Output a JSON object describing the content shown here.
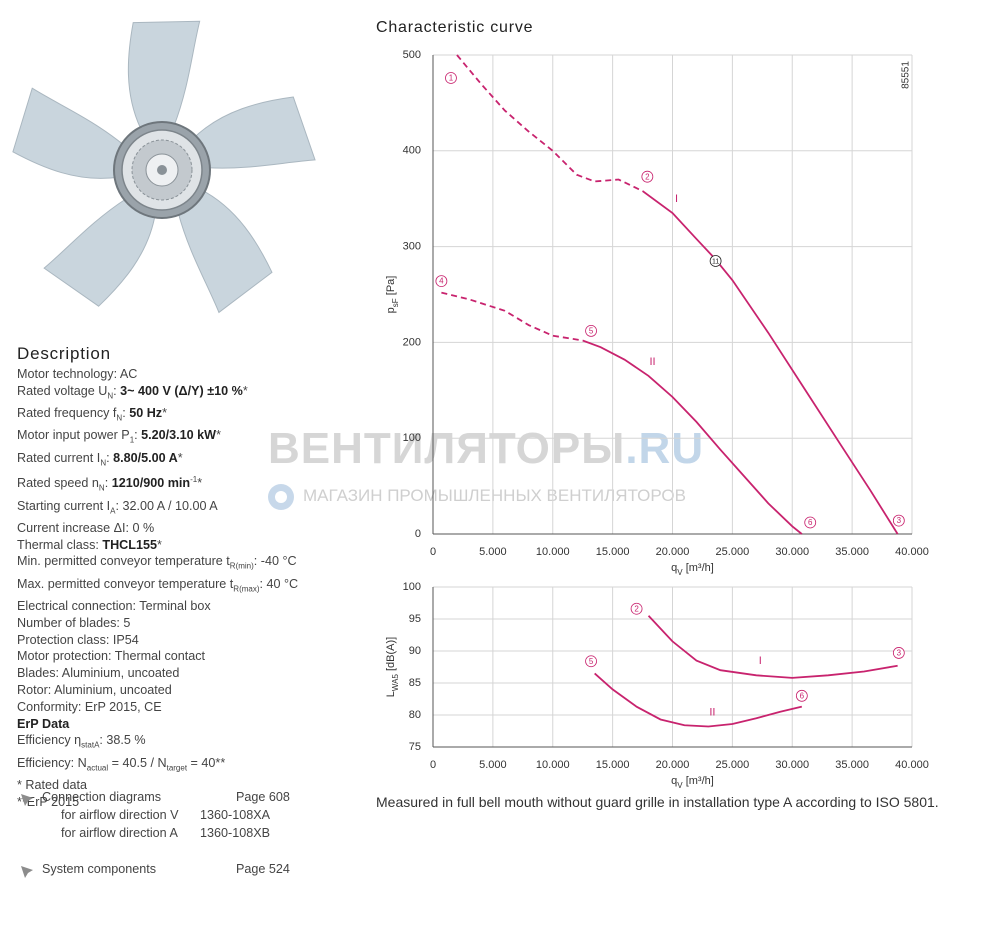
{
  "description": {
    "title": "Description",
    "lines": [
      [
        "Motor technology: AC"
      ],
      [
        "Rated voltage U",
        {
          "sub": "N"
        },
        ": ",
        {
          "b": "3~ 400 V (Δ/Y) ±10 %"
        },
        "*"
      ],
      [
        "Rated frequency f",
        {
          "sub": "N"
        },
        ": ",
        {
          "b": "50 Hz"
        },
        "*"
      ],
      [
        "Motor input power P",
        {
          "sub": "1"
        },
        ": ",
        {
          "b": "5.20/3.10 kW"
        },
        "*"
      ],
      [
        "Rated current I",
        {
          "sub": "N"
        },
        ": ",
        {
          "b": "8.80/5.00 A"
        },
        "*"
      ],
      [
        "Rated speed n",
        {
          "sub": "N"
        },
        ": ",
        {
          "b": "1210/900 min"
        },
        {
          "sup": "-1"
        },
        "*"
      ],
      [
        "Starting current I",
        {
          "sub": "A"
        },
        ": 32.00 A / 10.00 A"
      ],
      [
        "Current increase ΔI: 0 %"
      ],
      [
        "Thermal class: ",
        {
          "b": "THCL155"
        },
        "*"
      ],
      [
        "Min. permitted conveyor temperature t",
        {
          "sub": "R(min)"
        },
        ": -40 °C"
      ],
      [
        "Max. permitted conveyor temperature t",
        {
          "sub": "R(max)"
        },
        ": 40 °C"
      ],
      [
        "Electrical connection: Terminal box"
      ],
      [
        "Number of blades: 5"
      ],
      [
        "Protection class: IP54"
      ],
      [
        "Motor protection: Thermal contact"
      ],
      [
        "Blades: Aluminium, uncoated"
      ],
      [
        "Rotor: Aluminium, uncoated"
      ],
      [
        "Conformity: ErP 2015, CE"
      ],
      [
        {
          "b": "ErP Data"
        }
      ],
      [
        "Efficiency η",
        {
          "sub": "statA"
        },
        ": 38.5 %"
      ],
      [
        "Efficiency: N",
        {
          "sub": "actual"
        },
        " = 40.5 / N",
        {
          "sub": "target"
        },
        " = 40**"
      ],
      [
        "* Rated data"
      ],
      [
        "**ErP 2015"
      ]
    ]
  },
  "links": [
    {
      "label": "Connection diagrams",
      "page": "Page 608",
      "items": [
        {
          "text": "for airflow direction V",
          "code": "1360-108XA"
        },
        {
          "text": "for airflow direction A",
          "code": "1360-108XB"
        }
      ]
    },
    {
      "label": "System components",
      "page": "Page 524"
    }
  ],
  "watermark": {
    "brand": "ВЕНТИЛЯТОРЫ",
    "domain": ".RU",
    "tagline": "МАГАЗИН ПРОМЫШЛЕННЫХ ВЕНТИЛЯТОРОВ"
  },
  "caption": "Measured in full bell mouth without guard grille in installation type A according to ISO 5801.",
  "chart_data": [
    {
      "type": "line",
      "title": "Characteristic curve",
      "code": "85551",
      "xlabel": [
        "q",
        {
          "sub": "V"
        },
        " [m³/h]"
      ],
      "ylabel": [
        "p",
        {
          "sub": "sF"
        },
        " [Pa]"
      ],
      "xlim": [
        0,
        40000
      ],
      "xticks": [
        0,
        {
          "value": 5000,
          "label": "5.000"
        },
        {
          "value": 10000,
          "label": "10.000"
        },
        {
          "value": 15000,
          "label": "15.000"
        },
        {
          "value": 20000,
          "label": "20.000"
        },
        {
          "value": 25000,
          "label": "25.000"
        },
        {
          "value": 30000,
          "label": "30.000"
        },
        {
          "value": 35000,
          "label": "35.000"
        },
        {
          "value": 40000,
          "label": "40.000"
        }
      ],
      "ylim": [
        0,
        500
      ],
      "yticks": [
        0,
        100,
        200,
        300,
        400,
        500
      ],
      "grid": true,
      "series": [
        {
          "name": "I",
          "color": "#c8236e",
          "dashed_until_index": 8,
          "x": [
            2000,
            4000,
            6000,
            8000,
            10000,
            12000,
            13500,
            15500,
            17500,
            20000,
            22000,
            23500,
            25000,
            28000,
            31000,
            34000,
            36500,
            38800
          ],
          "values": [
            500,
            470,
            442,
            420,
            400,
            375,
            368,
            370,
            358,
            335,
            308,
            288,
            265,
            210,
            152,
            94,
            46,
            0
          ]
        },
        {
          "name": "II",
          "color": "#c8236e",
          "dashed_until_index": 5,
          "x": [
            700,
            3000,
            6000,
            8000,
            10000,
            12500,
            14000,
            16000,
            18000,
            20000,
            22000,
            24000,
            26000,
            28000,
            30000,
            30800
          ],
          "values": [
            252,
            245,
            233,
            218,
            207,
            202,
            195,
            182,
            165,
            143,
            117,
            88,
            60,
            32,
            8,
            0
          ]
        }
      ],
      "annotations": [
        {
          "text": "1",
          "x": 1500,
          "y": 476,
          "color": "#c8236e"
        },
        {
          "text": "2",
          "x": 17900,
          "y": 373,
          "color": "#c8236e"
        },
        {
          "text": "11",
          "x": 23600,
          "y": 285,
          "color": "#222222"
        },
        {
          "text": "3",
          "x": 38900,
          "y": 14,
          "color": "#c8236e"
        },
        {
          "text": "4",
          "x": 700,
          "y": 264,
          "color": "#c8236e"
        },
        {
          "text": "5",
          "x": 13200,
          "y": 212,
          "color": "#c8236e"
        },
        {
          "text": "6",
          "x": 31500,
          "y": 12,
          "color": "#c8236e"
        }
      ]
    },
    {
      "type": "line",
      "xlabel": [
        "q",
        {
          "sub": "V"
        },
        " [m³/h]"
      ],
      "ylabel": [
        "L",
        {
          "sub": "WA5"
        },
        " [dB(A)]"
      ],
      "xlim": [
        0,
        40000
      ],
      "xticks": [
        0,
        {
          "value": 5000,
          "label": "5.000"
        },
        {
          "value": 10000,
          "label": "10.000"
        },
        {
          "value": 15000,
          "label": "15.000"
        },
        {
          "value": 20000,
          "label": "20.000"
        },
        {
          "value": 25000,
          "label": "25.000"
        },
        {
          "value": 30000,
          "label": "30.000"
        },
        {
          "value": 35000,
          "label": "35.000"
        },
        {
          "value": 40000,
          "label": "40.000"
        }
      ],
      "ylim": [
        75,
        100
      ],
      "yticks": [
        75,
        80,
        85,
        90,
        95,
        100
      ],
      "grid": true,
      "series": [
        {
          "name": "I",
          "color": "#c8236e",
          "x": [
            18000,
            20000,
            22000,
            24000,
            27000,
            30000,
            33000,
            36000,
            38800
          ],
          "values": [
            95.5,
            91.5,
            88.5,
            87,
            86.2,
            85.8,
            86.2,
            86.8,
            87.7
          ]
        },
        {
          "name": "II",
          "color": "#c8236e",
          "x": [
            13500,
            15000,
            17000,
            19000,
            21000,
            23000,
            25000,
            27000,
            29000,
            30800
          ],
          "values": [
            86.5,
            84,
            81.3,
            79.3,
            78.4,
            78.2,
            78.6,
            79.5,
            80.5,
            81.3
          ]
        }
      ],
      "annotations": [
        {
          "text": "2",
          "x": 17000,
          "y": 96.6,
          "color": "#c8236e"
        },
        {
          "text": "3",
          "x": 38900,
          "y": 89.7,
          "color": "#c8236e"
        },
        {
          "text": "5",
          "x": 13200,
          "y": 88.4,
          "color": "#c8236e"
        },
        {
          "text": "6",
          "x": 30800,
          "y": 83,
          "color": "#c8236e"
        }
      ]
    }
  ]
}
